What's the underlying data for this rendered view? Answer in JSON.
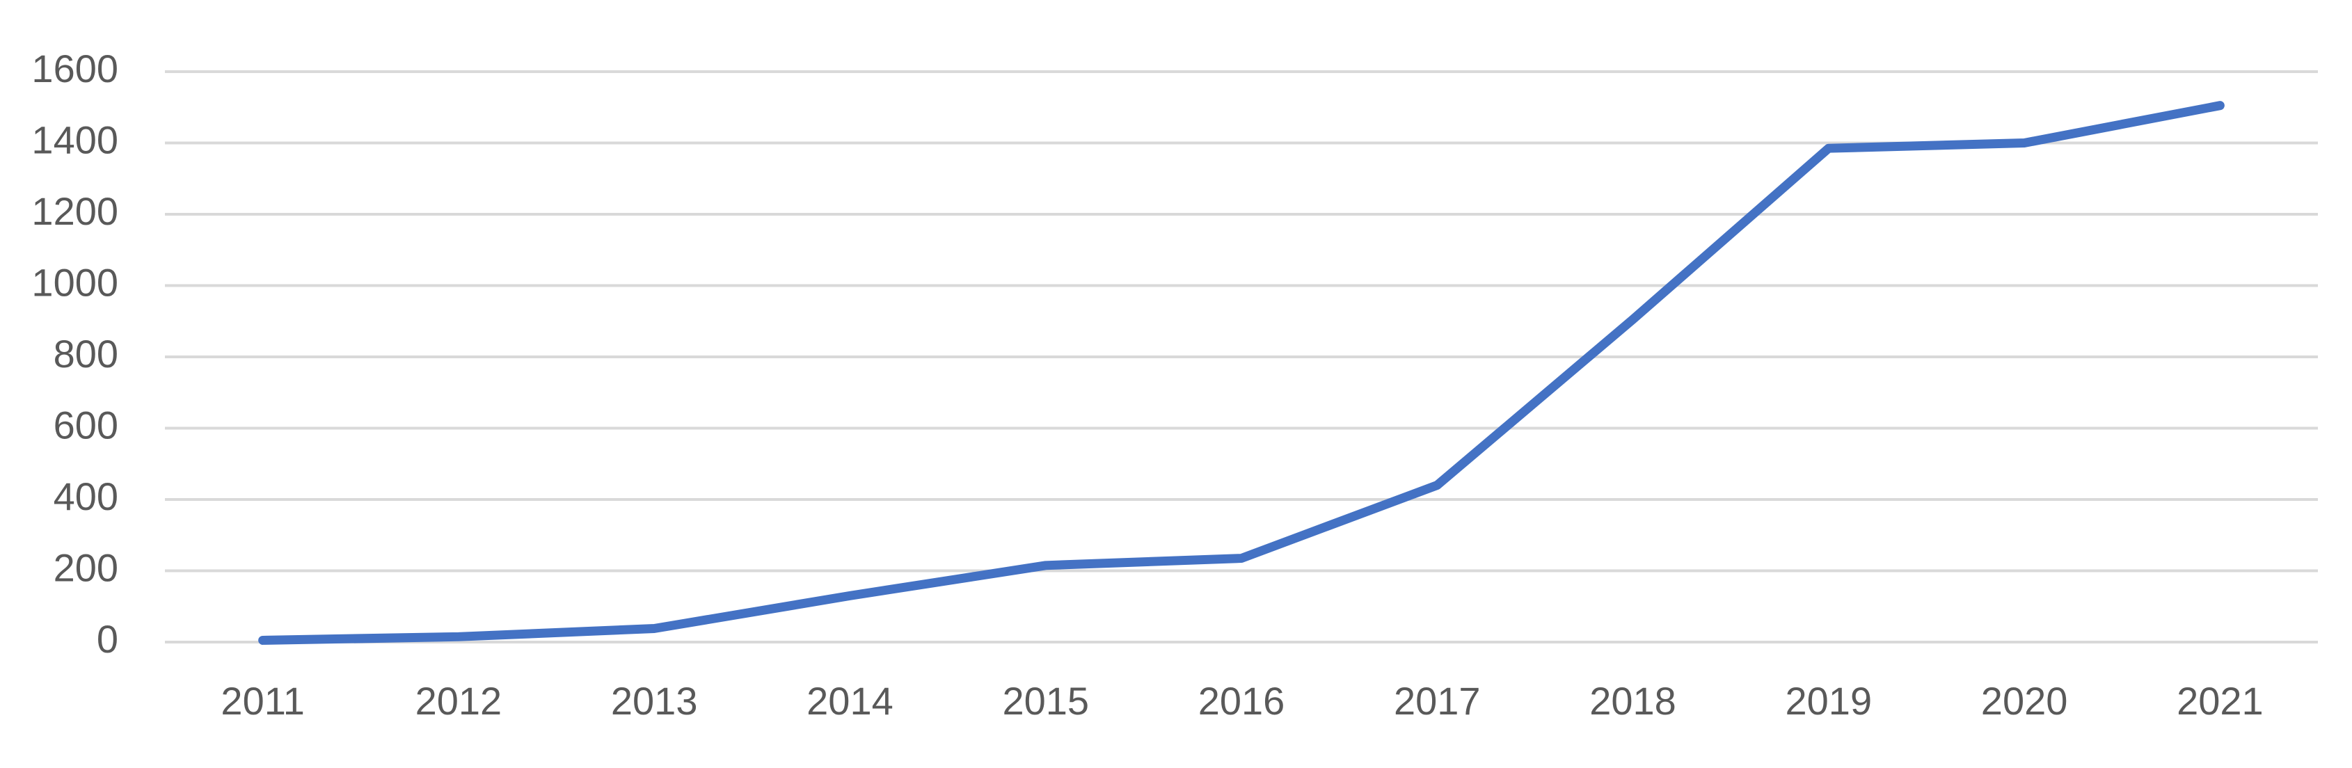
{
  "chart_data": {
    "type": "line",
    "categories": [
      "2011",
      "2012",
      "2013",
      "2014",
      "2015",
      "2016",
      "2017",
      "2018",
      "2019",
      "2020",
      "2021"
    ],
    "values": [
      5,
      15,
      38,
      130,
      215,
      235,
      440,
      905,
      1385,
      1400,
      1505
    ],
    "color": "#4472c4",
    "ylim": [
      0,
      1600
    ],
    "yticks": [
      0,
      200,
      400,
      600,
      800,
      1000,
      1200,
      1400,
      1600
    ],
    "grid": true
  }
}
